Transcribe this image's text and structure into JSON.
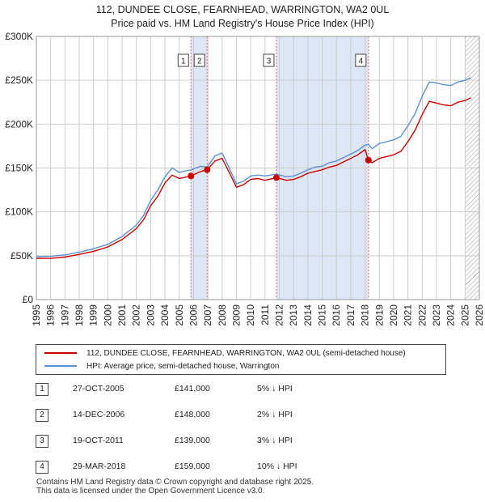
{
  "header": {
    "title": "112, DUNDEE CLOSE, FEARNHEAD, WARRINGTON, WA2 0UL",
    "subtitle": "Price paid vs. HM Land Registry's House Price Index (HPI)"
  },
  "colors": {
    "price_line": "#cc0000",
    "hpi_line": "#5b8fd4",
    "shade": "#dde6f5",
    "grid": "#cccccc",
    "marker_line": "#e26b6b"
  },
  "legend": {
    "price_label": "112, DUNDEE CLOSE, FEARNHEAD, WARRINGTON, WA2 0UL (semi-detached house)",
    "hpi_label": "HPI: Average price, semi-detached house, Warrington"
  },
  "sales": [
    {
      "num": "1",
      "date": "27-OCT-2005",
      "price": "£141,000",
      "hpi": "5% ↓ HPI"
    },
    {
      "num": "2",
      "date": "14-DEC-2006",
      "price": "£148,000",
      "hpi": "2% ↓ HPI"
    },
    {
      "num": "3",
      "date": "19-OCT-2011",
      "price": "£139,000",
      "hpi": "3% ↓ HPI"
    },
    {
      "num": "4",
      "date": "29-MAR-2018",
      "price": "£159,000",
      "hpi": "10% ↓ HPI"
    }
  ],
  "footer": {
    "line1": "Contains HM Land Registry data © Crown copyright and database right 2025.",
    "line2": "This data is licensed under the Open Government Licence v3.0."
  },
  "chart_data": {
    "type": "line",
    "title": "112, DUNDEE CLOSE, FEARNHEAD, WARRINGTON, WA2 0UL",
    "subtitle": "Price paid vs. HM Land Registry's House Price Index (HPI)",
    "xlabel": "",
    "ylabel": "",
    "xlim": [
      1995,
      2026
    ],
    "ylim": [
      0,
      300000
    ],
    "yticks": [
      0,
      50000,
      100000,
      150000,
      200000,
      250000,
      300000
    ],
    "ytick_labels": [
      "£0",
      "£50K",
      "£100K",
      "£150K",
      "£200K",
      "£250K",
      "£300K"
    ],
    "xticks": [
      1995,
      1996,
      1997,
      1998,
      1999,
      2000,
      2001,
      2002,
      2003,
      2004,
      2005,
      2006,
      2007,
      2008,
      2009,
      2010,
      2011,
      2012,
      2013,
      2014,
      2015,
      2016,
      2017,
      2018,
      2019,
      2020,
      2021,
      2022,
      2023,
      2024,
      2025,
      2026
    ],
    "grid": true,
    "shaded_periods": [
      [
        2005.82,
        2006.95
      ],
      [
        2011.8,
        2018.24
      ]
    ],
    "hatched_from": 2025.0,
    "series": [
      {
        "name": "HPI: Average price, semi-detached house, Warrington",
        "color": "#5b8fd4",
        "x": [
          1995.0,
          1996.0,
          1997.0,
          1998.0,
          1999.0,
          2000.0,
          2001.0,
          2002.0,
          2002.5,
          2003.0,
          2003.5,
          2004.0,
          2004.5,
          2005.0,
          2005.82,
          2006.5,
          2006.95,
          2007.5,
          2008.0,
          2008.5,
          2009.0,
          2009.5,
          2010.0,
          2010.5,
          2011.0,
          2011.8,
          2012.5,
          2013.0,
          2013.5,
          2014.0,
          2014.5,
          2015.0,
          2015.5,
          2016.0,
          2016.5,
          2017.0,
          2017.5,
          2018.0,
          2018.24,
          2018.5,
          2019.0,
          2019.5,
          2020.0,
          2020.5,
          2021.0,
          2021.5,
          2022.0,
          2022.5,
          2023.0,
          2023.5,
          2024.0,
          2024.5,
          2025.0,
          2025.4
        ],
        "y": [
          49000,
          49500,
          51000,
          54000,
          58000,
          63000,
          72000,
          85000,
          96000,
          113000,
          125000,
          140000,
          150000,
          145000,
          148000,
          152000,
          151000,
          164000,
          167000,
          150000,
          132000,
          135000,
          141000,
          142000,
          141000,
          143000,
          140000,
          141000,
          144000,
          148000,
          151000,
          152000,
          156000,
          158000,
          162000,
          166000,
          170000,
          176000,
          177000,
          172000,
          178000,
          180000,
          182000,
          186000,
          198000,
          212000,
          232000,
          248000,
          247000,
          245000,
          244000,
          248000,
          250000,
          253000
        ]
      },
      {
        "name": "112, DUNDEE CLOSE, FEARNHEAD, WARRINGTON, WA2 0UL (semi-detached house)",
        "color": "#cc0000",
        "x": [
          1995.0,
          1996.0,
          1997.0,
          1998.0,
          1999.0,
          2000.0,
          2001.0,
          2002.0,
          2002.5,
          2003.0,
          2003.5,
          2004.0,
          2004.5,
          2005.0,
          2005.82,
          2006.5,
          2006.95,
          2007.5,
          2008.0,
          2008.5,
          2009.0,
          2009.5,
          2010.0,
          2010.5,
          2011.0,
          2011.8,
          2012.5,
          2013.0,
          2013.5,
          2014.0,
          2014.5,
          2015.0,
          2015.5,
          2016.0,
          2016.5,
          2017.0,
          2017.5,
          2018.0,
          2018.24,
          2018.5,
          2019.0,
          2019.5,
          2020.0,
          2020.5,
          2021.0,
          2021.5,
          2022.0,
          2022.5,
          2023.0,
          2023.5,
          2024.0,
          2024.5,
          2025.0,
          2025.4
        ],
        "y": [
          47000,
          47000,
          48500,
          51500,
          55000,
          60000,
          68500,
          81000,
          91000,
          107000,
          118000,
          133000,
          142000,
          138000,
          141000,
          146000,
          148000,
          158000,
          161000,
          145000,
          128000,
          131000,
          137000,
          138000,
          136000,
          139000,
          136000,
          137000,
          140000,
          144000,
          146000,
          148000,
          151000,
          153000,
          157000,
          161000,
          165000,
          171000,
          159000,
          156000,
          161000,
          163000,
          165000,
          169000,
          180000,
          193000,
          211000,
          226000,
          224000,
          222000,
          221000,
          225000,
          227000,
          230000
        ]
      }
    ],
    "annotations": [
      {
        "label": "1",
        "x": 2005.82,
        "y": 141000
      },
      {
        "label": "2",
        "x": 2006.95,
        "y": 148000
      },
      {
        "label": "3",
        "x": 2011.8,
        "y": 139000
      },
      {
        "label": "4",
        "x": 2018.24,
        "y": 159000
      }
    ]
  }
}
